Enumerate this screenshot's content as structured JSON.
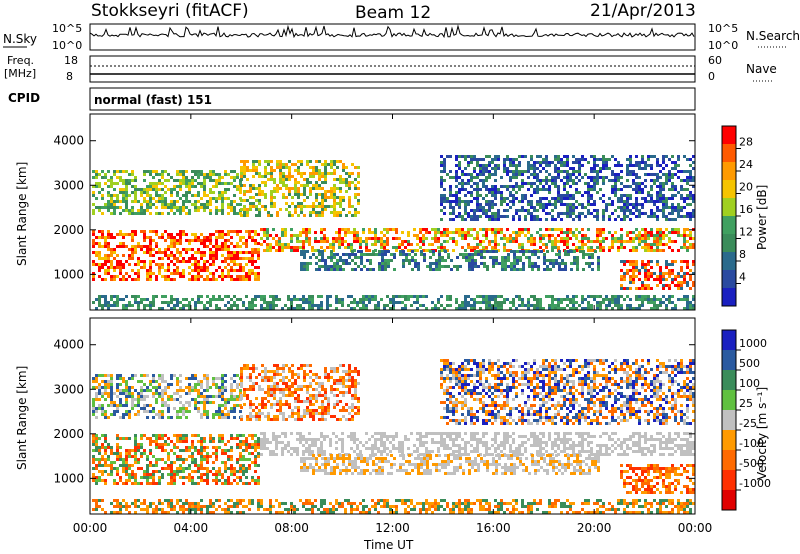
{
  "header": {
    "station": "Stokkseyri (fitACF)",
    "beam": "Beam 12",
    "date": "21/Apr/2013"
  },
  "sky_panel": {
    "left_label": "N.Sky",
    "right_label": "N.Search",
    "left_ticks": [
      "10^5",
      "10^0"
    ],
    "right_ticks": [
      "10^5",
      "10^0"
    ]
  },
  "freq_panel": {
    "left_label_1": "Freq.",
    "left_label_2": "[MHz]",
    "left_ticks": [
      "18",
      "8"
    ],
    "right_label": "Nave",
    "right_ticks": [
      "60",
      "0"
    ]
  },
  "cpid": {
    "label": "CPID",
    "value": "normal (fast) 151"
  },
  "chart_data": [
    {
      "type": "heatmap",
      "panel": "power",
      "ylabel": "Slant Range [km]",
      "ylim": [
        200,
        4600
      ],
      "yticks": [
        1000,
        2000,
        3000,
        4000
      ],
      "xlim": [
        "00:00",
        "24:00"
      ],
      "colorbar": {
        "label": "Power [dB]",
        "ticks": [
          "28",
          "24",
          "20",
          "16",
          "12",
          "8",
          "4"
        ],
        "colors": [
          "#ff0000",
          "#ff5a00",
          "#ff9a00",
          "#f5c400",
          "#a0d020",
          "#40a060",
          "#3a8c5a",
          "#2a6a8c",
          "#2a4aa0",
          "#1a20c0"
        ]
      }
    },
    {
      "type": "heatmap",
      "panel": "velocity",
      "ylabel": "Slant Range [km]",
      "ylim": [
        200,
        4600
      ],
      "yticks": [
        1000,
        2000,
        3000,
        4000
      ],
      "xlim": [
        "00:00",
        "24:00"
      ],
      "colorbar": {
        "label": "Velocity [m s⁻¹]",
        "ticks": [
          "1000",
          "500",
          "100",
          "25",
          "-25",
          "-100",
          "-500",
          "-1000"
        ],
        "colors": [
          "#1a20c0",
          "#2a5aa0",
          "#3a8c5a",
          "#60c040",
          "#c0c0c0",
          "#ff9a00",
          "#ff6a00",
          "#ff3000",
          "#e00000"
        ]
      }
    }
  ],
  "xaxis": {
    "ticks": [
      "00:00",
      "04:00",
      "08:00",
      "12:00",
      "16:00",
      "20:00",
      "00:00"
    ],
    "label": "Time UT"
  }
}
